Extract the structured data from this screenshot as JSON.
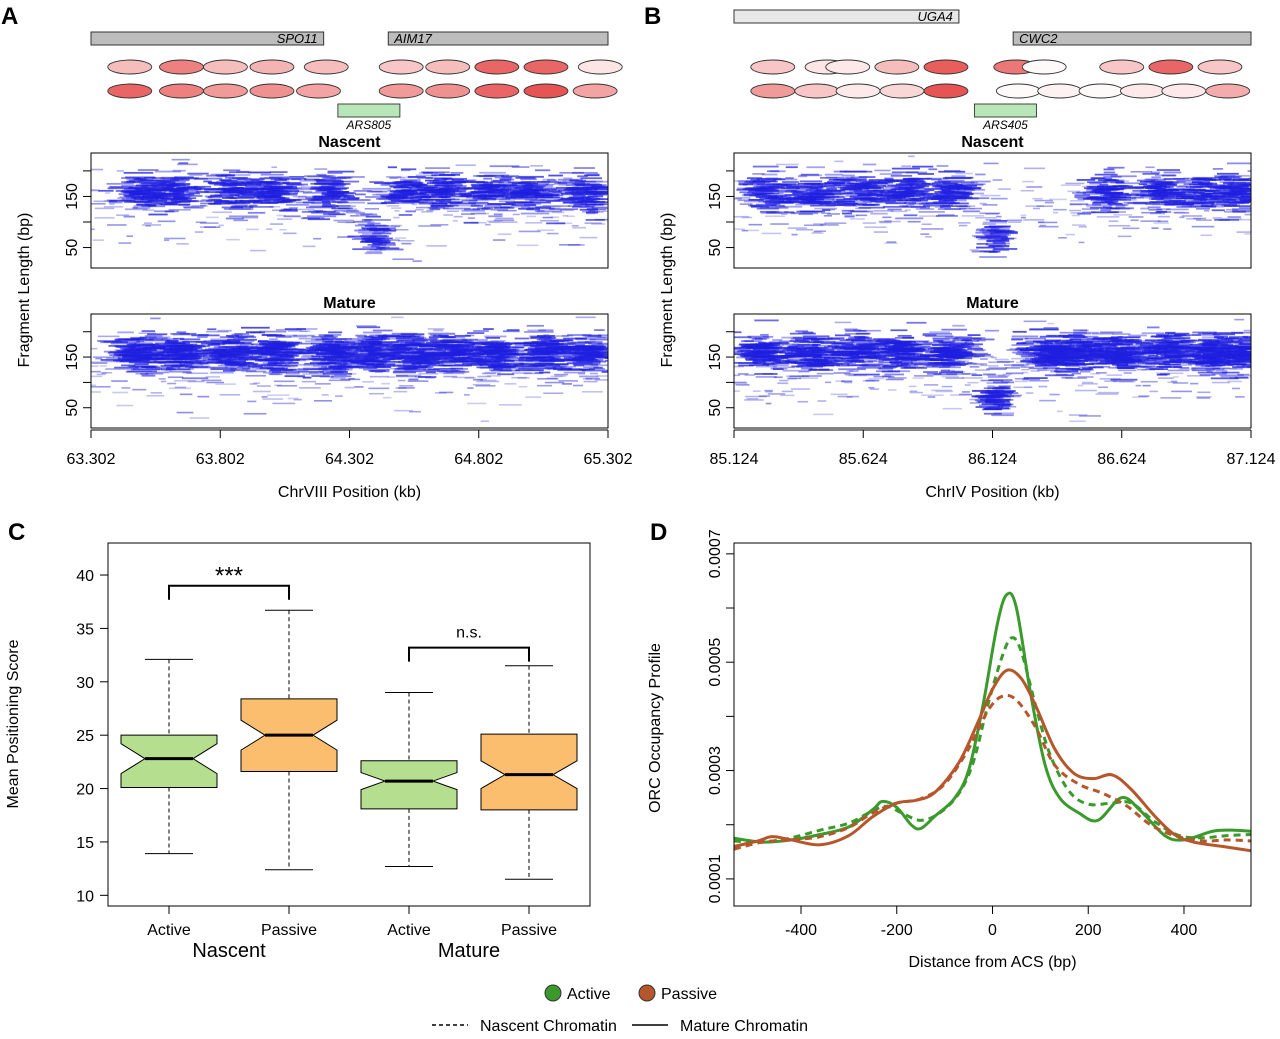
{
  "panels": {
    "A": {
      "letter": "A",
      "genes": [
        {
          "name": "SPO11",
          "start": 63.302,
          "end": 64.202
        },
        {
          "name": "AIM17",
          "start": 64.452,
          "end": 65.302
        }
      ],
      "ars": {
        "name": "ARS805",
        "center": 64.377
      },
      "nuc_row1": [
        {
          "x": 63.452,
          "i": 0.35
        },
        {
          "x": 63.652,
          "i": 0.7
        },
        {
          "x": 63.822,
          "i": 0.35
        },
        {
          "x": 64.002,
          "i": 0.4
        },
        {
          "x": 64.212,
          "i": 0.35
        },
        {
          "x": 64.502,
          "i": 0.3
        },
        {
          "x": 64.682,
          "i": 0.35
        },
        {
          "x": 64.872,
          "i": 0.85
        },
        {
          "x": 65.062,
          "i": 0.85
        },
        {
          "x": 65.272,
          "i": 0.12
        }
      ],
      "nuc_row2": [
        {
          "x": 63.452,
          "i": 0.85
        },
        {
          "x": 63.652,
          "i": 0.7
        },
        {
          "x": 63.822,
          "i": 0.55
        },
        {
          "x": 64.002,
          "i": 0.6
        },
        {
          "x": 64.182,
          "i": 0.5
        },
        {
          "x": 64.502,
          "i": 0.55
        },
        {
          "x": 64.682,
          "i": 0.6
        },
        {
          "x": 64.872,
          "i": 0.85
        },
        {
          "x": 65.062,
          "i": 0.95
        },
        {
          "x": 65.252,
          "i": 0.5
        }
      ],
      "nascent_clusters": [
        63.492,
        63.622,
        63.842,
        64.002,
        64.232,
        64.402,
        64.522,
        64.662,
        64.842,
        65.002,
        65.212
      ],
      "mature_clusters": [
        63.492,
        63.662,
        63.842,
        64.022,
        64.232,
        64.402,
        64.552,
        64.702,
        64.872,
        65.052,
        65.222
      ],
      "strip_titles": [
        "Nascent",
        "Mature"
      ],
      "xticks": [
        "63.302",
        "63.802",
        "64.302",
        "64.802",
        "65.302"
      ],
      "xrange": [
        63.302,
        65.302
      ],
      "xlabel": "ChrVIII Position (kb)",
      "ylabel": "Fragment Length (bp)",
      "yticks": [
        "50",
        "150"
      ]
    },
    "B": {
      "letter": "B",
      "genes": [
        {
          "name": "UGA4",
          "start": 85.124,
          "end": 85.994
        },
        {
          "name": "CWC2",
          "start": 86.204,
          "end": 87.124
        }
      ],
      "ars": {
        "name": "ARS405",
        "center": 86.174
      },
      "nuc_row1": [
        {
          "x": 85.274,
          "i": 0.3
        },
        {
          "x": 85.484,
          "i": 0.12
        },
        {
          "x": 85.564,
          "i": 0.1
        },
        {
          "x": 85.754,
          "i": 0.35
        },
        {
          "x": 85.944,
          "i": 0.9
        },
        {
          "x": 86.214,
          "i": 0.75
        },
        {
          "x": 86.324,
          "i": 0.0
        },
        {
          "x": 86.624,
          "i": 0.3
        },
        {
          "x": 86.814,
          "i": 0.85
        },
        {
          "x": 87.004,
          "i": 0.3
        }
      ],
      "nuc_row2": [
        {
          "x": 85.274,
          "i": 0.55
        },
        {
          "x": 85.444,
          "i": 0.3
        },
        {
          "x": 85.604,
          "i": 0.1
        },
        {
          "x": 85.774,
          "i": 0.2
        },
        {
          "x": 85.944,
          "i": 0.95
        },
        {
          "x": 86.224,
          "i": 0.0
        },
        {
          "x": 86.384,
          "i": 0.05
        },
        {
          "x": 86.544,
          "i": 0.0
        },
        {
          "x": 86.704,
          "i": 0.1
        },
        {
          "x": 86.864,
          "i": 0.1
        },
        {
          "x": 87.034,
          "i": 0.45
        }
      ],
      "nascent_clusters": [
        85.264,
        85.444,
        85.614,
        85.794,
        85.964,
        86.134,
        86.574,
        86.774,
        86.934,
        87.084
      ],
      "mature_clusters": [
        85.234,
        85.424,
        85.604,
        85.774,
        85.964,
        86.134,
        86.334,
        86.464,
        86.624,
        86.794,
        86.964,
        87.084
      ],
      "strip_titles": [
        "Nascent",
        "Mature"
      ],
      "xticks": [
        "85.124",
        "85.624",
        "86.124",
        "86.624",
        "87.124"
      ],
      "xrange": [
        85.124,
        87.124
      ],
      "xlabel": "ChrIV Position (kb)",
      "ylabel": "Fragment Length (bp)",
      "yticks": [
        "50",
        "150"
      ]
    },
    "C": {
      "letter": "C"
    },
    "D": {
      "letter": "D"
    }
  },
  "chart_data": [
    {
      "panel": "C",
      "type": "box",
      "ylabel": "Mean Positioning Score",
      "ylim": [
        9,
        43
      ],
      "yticks": [
        10,
        15,
        20,
        25,
        30,
        35,
        40
      ],
      "categories": [
        "Active",
        "Passive",
        "Active",
        "Passive"
      ],
      "groups": [
        "Nascent",
        "Mature"
      ],
      "colors": {
        "Active": "#b5df8f",
        "Passive": "#fbbe6f"
      },
      "boxes": [
        {
          "group": "Nascent",
          "label": "Active",
          "min": 13.9,
          "q1": 20.1,
          "median": 22.8,
          "q3": 25.0,
          "max": 32.1,
          "notch_lo": 21.4,
          "notch_hi": 24.2,
          "color": "#b5df8f"
        },
        {
          "group": "Nascent",
          "label": "Passive",
          "min": 12.4,
          "q1": 21.6,
          "median": 25.0,
          "q3": 28.4,
          "max": 36.7,
          "notch_lo": 23.6,
          "notch_hi": 26.4,
          "color": "#fbbe6f"
        },
        {
          "group": "Mature",
          "label": "Active",
          "min": 12.7,
          "q1": 18.1,
          "median": 20.7,
          "q3": 22.6,
          "max": 29.0,
          "notch_lo": 19.9,
          "notch_hi": 21.5,
          "color": "#b5df8f"
        },
        {
          "group": "Mature",
          "label": "Passive",
          "min": 11.5,
          "q1": 18.0,
          "median": 21.3,
          "q3": 25.1,
          "max": 31.5,
          "notch_lo": 20.0,
          "notch_hi": 22.6,
          "color": "#fbbe6f"
        }
      ],
      "annotations": [
        {
          "text": "***",
          "between": [
            0,
            1
          ],
          "y": 39.0
        },
        {
          "text": "n.s.",
          "between": [
            2,
            3
          ],
          "y": 33.2
        }
      ]
    },
    {
      "panel": "D",
      "type": "line",
      "xlabel": "Distance from ACS (bp)",
      "ylabel": "ORC Occupancy Profile",
      "xlim": [
        -540,
        540
      ],
      "ylim": [
        5e-05,
        0.00072
      ],
      "xticks": [
        -400,
        -200,
        0,
        200,
        400
      ],
      "yticks": [
        "0.0001",
        "0.0003",
        "0.0005",
        "0.0007"
      ],
      "series": [
        {
          "name": "Active",
          "style": "solid",
          "color": "#3a9a2c",
          "points": [
            [
              -540,
              0.000175
            ],
            [
              -480,
              0.000168
            ],
            [
              -420,
              0.000172
            ],
            [
              -360,
              0.000182
            ],
            [
              -300,
              0.000196
            ],
            [
              -250,
              0.000228
            ],
            [
              -230,
              0.000243
            ],
            [
              -200,
              0.000232
            ],
            [
              -170,
              0.0002
            ],
            [
              -150,
              0.000193
            ],
            [
              -120,
              0.000216
            ],
            [
              -80,
              0.000248
            ],
            [
              -50,
              0.0003
            ],
            [
              -20,
              0.00042
            ],
            [
              10,
              0.00057
            ],
            [
              30,
              0.000625
            ],
            [
              50,
              0.0006
            ],
            [
              80,
              0.00044
            ],
            [
              110,
              0.00031
            ],
            [
              140,
              0.00025
            ],
            [
              180,
              0.000222
            ],
            [
              220,
              0.000208
            ],
            [
              270,
              0.00025
            ],
            [
              310,
              0.000225
            ],
            [
              360,
              0.00018
            ],
            [
              400,
              0.000172
            ],
            [
              460,
              0.000188
            ],
            [
              500,
              0.00019
            ],
            [
              540,
              0.000188
            ]
          ]
        },
        {
          "name": "Active",
          "style": "dashed",
          "color": "#3a9a2c",
          "points": [
            [
              -540,
              0.00017
            ],
            [
              -480,
              0.000168
            ],
            [
              -420,
              0.000176
            ],
            [
              -360,
              0.00019
            ],
            [
              -300,
              0.000203
            ],
            [
              -250,
              0.000226
            ],
            [
              -220,
              0.000234
            ],
            [
              -190,
              0.000222
            ],
            [
              -150,
              0.000208
            ],
            [
              -110,
              0.000222
            ],
            [
              -70,
              0.000258
            ],
            [
              -40,
              0.000316
            ],
            [
              -10,
              0.00042
            ],
            [
              20,
              0.00051
            ],
            [
              40,
              0.000545
            ],
            [
              60,
              0.00052
            ],
            [
              90,
              0.00042
            ],
            [
              120,
              0.00033
            ],
            [
              160,
              0.000262
            ],
            [
              200,
              0.000238
            ],
            [
              250,
              0.00024
            ],
            [
              290,
              0.00024
            ],
            [
              340,
              0.000205
            ],
            [
              390,
              0.00018
            ],
            [
              440,
              0.000176
            ],
            [
              490,
              0.00018
            ],
            [
              540,
              0.000182
            ]
          ]
        },
        {
          "name": "Passive",
          "style": "solid",
          "color": "#b5562b",
          "points": [
            [
              -540,
              0.00016
            ],
            [
              -490,
              0.00017
            ],
            [
              -460,
              0.000178
            ],
            [
              -420,
              0.000172
            ],
            [
              -360,
              0.000163
            ],
            [
              -300,
              0.00018
            ],
            [
              -250,
              0.000215
            ],
            [
              -200,
              0.00024
            ],
            [
              -160,
              0.000245
            ],
            [
              -120,
              0.00026
            ],
            [
              -70,
              0.000315
            ],
            [
              -30,
              0.00039
            ],
            [
              0,
              0.00045
            ],
            [
              30,
              0.000485
            ],
            [
              60,
              0.00047
            ],
            [
              90,
              0.00042
            ],
            [
              130,
              0.00034
            ],
            [
              170,
              0.000295
            ],
            [
              210,
              0.000285
            ],
            [
              250,
              0.000292
            ],
            [
              290,
              0.000265
            ],
            [
              340,
              0.000215
            ],
            [
              380,
              0.000182
            ],
            [
              420,
              0.000168
            ],
            [
              480,
              0.00016
            ],
            [
              540,
              0.000152
            ]
          ]
        },
        {
          "name": "Passive",
          "style": "dashed",
          "color": "#b5562b",
          "points": [
            [
              -540,
              0.000155
            ],
            [
              -480,
              0.000168
            ],
            [
              -420,
              0.000172
            ],
            [
              -360,
              0.000178
            ],
            [
              -300,
              0.000195
            ],
            [
              -250,
              0.000222
            ],
            [
              -200,
              0.00024
            ],
            [
              -150,
              0.000248
            ],
            [
              -100,
              0.000275
            ],
            [
              -50,
              0.00034
            ],
            [
              -10,
              0.00041
            ],
            [
              20,
              0.000437
            ],
            [
              50,
              0.00043
            ],
            [
              90,
              0.00038
            ],
            [
              130,
              0.00031
            ],
            [
              180,
              0.000275
            ],
            [
              230,
              0.000258
            ],
            [
              280,
              0.000235
            ],
            [
              330,
              0.0002
            ],
            [
              380,
              0.00018
            ],
            [
              440,
              0.00017
            ],
            [
              490,
              0.000172
            ],
            [
              540,
              0.00017
            ]
          ]
        }
      ]
    }
  ],
  "legend": {
    "color_entries": [
      {
        "label": "Active",
        "color": "#3a9a2c"
      },
      {
        "label": "Passive",
        "color": "#b5562b"
      }
    ],
    "line_entries": [
      {
        "label": "Nascent Chromatin",
        "style": "dashed"
      },
      {
        "label": "Mature Chromatin",
        "style": "solid"
      }
    ]
  }
}
